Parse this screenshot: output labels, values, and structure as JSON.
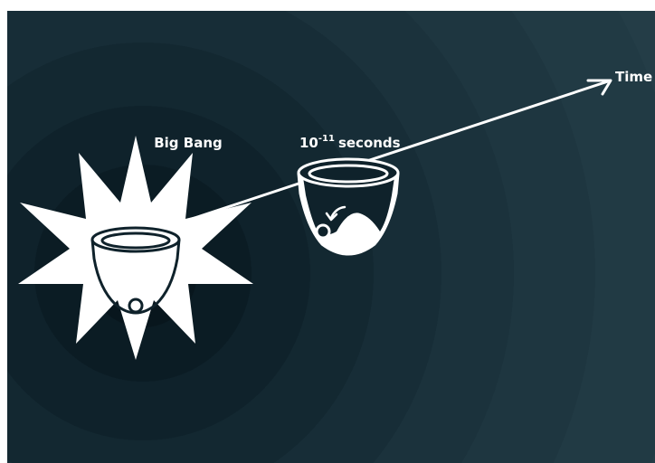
{
  "labels": {
    "big_bang": "Big Bang",
    "later_base": "10",
    "later_exponent": "-11",
    "later_unit": "seconds",
    "time_axis": "Time"
  },
  "colors": {
    "background_dark": "#08161d",
    "background_light": "#243d47",
    "foreground": "#ffffff"
  },
  "icons": {
    "starburst": "starburst-icon",
    "early_cup": "cup-with-ball-icon",
    "later_cup": "cup-with-hump-icon",
    "roll_arrow": "curved-arrow-icon"
  }
}
